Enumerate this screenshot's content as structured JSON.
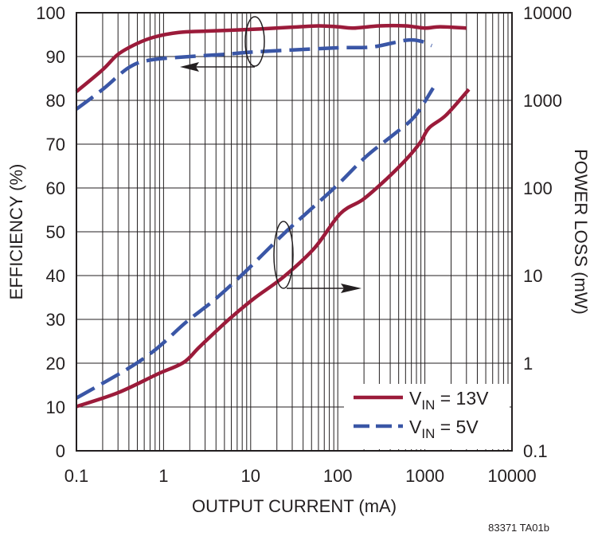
{
  "chart_data": {
    "type": "line",
    "xlabel": "OUTPUT CURRENT (mA)",
    "ylabel": "EFFICIENCY (%)",
    "y2label": "POWER LOSS (mW)",
    "x_scale": "log",
    "xlim": [
      0.1,
      10000
    ],
    "ylim": [
      0,
      100
    ],
    "y2lim": [
      0.1,
      10000
    ],
    "y2_scale": "log",
    "grid": true,
    "legend_position": "bottom-right",
    "x_ticks": [
      "0.1",
      "1",
      "10",
      "100",
      "1000",
      "10000"
    ],
    "y_ticks": [
      "0",
      "10",
      "20",
      "30",
      "40",
      "50",
      "60",
      "70",
      "80",
      "90",
      "100"
    ],
    "y2_ticks": [
      "0.1",
      "1",
      "10",
      "100",
      "1000",
      "10000"
    ],
    "legend": [
      {
        "prefix": "V",
        "sub": "IN",
        "suffix": " = 13V",
        "color": "#9b1b3a",
        "dash": "solid"
      },
      {
        "prefix": "V",
        "sub": "IN",
        "suffix": " = 5V",
        "color": "#3a56a6",
        "dash": "dashed"
      }
    ],
    "series": [
      {
        "legend": 0,
        "axis": "left",
        "quantity": "efficiency",
        "x": [
          0.1,
          0.2,
          0.3,
          0.5,
          0.8,
          1.5,
          3,
          10,
          30,
          60,
          100,
          150,
          300,
          600,
          1000,
          1500,
          3000
        ],
        "y": [
          82,
          87,
          90.5,
          93,
          94.5,
          95.5,
          95.8,
          96.2,
          96.7,
          97,
          96.8,
          96.5,
          97,
          97,
          96.5,
          96.8,
          96.5
        ]
      },
      {
        "legend": 1,
        "axis": "left",
        "quantity": "efficiency",
        "x": [
          0.1,
          0.2,
          0.4,
          0.7,
          2,
          5,
          10,
          30,
          100,
          250,
          600,
          900,
          1200
        ],
        "y": [
          78,
          82.5,
          87.5,
          89.2,
          90,
          90.5,
          91,
          91.5,
          92,
          92.2,
          93.7,
          93.5,
          92.5
        ]
      },
      {
        "legend": 0,
        "axis": "right",
        "quantity": "power loss",
        "x": [
          0.1,
          0.3,
          0.85,
          1.7,
          2.6,
          5.6,
          11,
          24,
          54,
          107,
          195,
          358,
          608,
          887,
          1113,
          1750,
          3200
        ],
        "y": [
          0.32,
          0.46,
          0.75,
          1.02,
          1.54,
          3.15,
          5.5,
          9.7,
          20.6,
          51,
          74,
          125,
          211,
          332,
          483,
          678,
          1333
        ]
      },
      {
        "legend": 1,
        "axis": "right",
        "quantity": "power loss",
        "x": [
          0.1,
          0.4,
          0.85,
          1.8,
          3.85,
          8.2,
          24,
          47,
          99,
          211,
          450,
          762,
          1245
        ],
        "y": [
          0.4,
          0.88,
          1.49,
          2.92,
          5.3,
          10.5,
          30,
          55,
          108,
          228,
          416,
          653,
          1383
        ]
      }
    ],
    "annotations": [
      {
        "type": "ellipse-arrow",
        "direction": "left",
        "at_x": 12
      },
      {
        "type": "ellipse-arrow",
        "direction": "right",
        "at_x": 25
      }
    ]
  },
  "footer": "83371 TA01b"
}
